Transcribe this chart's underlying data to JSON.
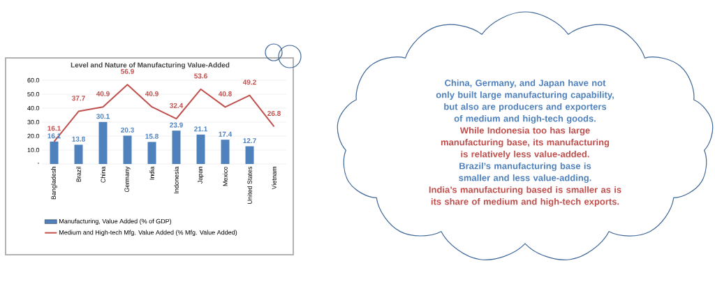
{
  "chart_data": {
    "type": "bar",
    "title": "Level and Nature of Manufacturing Value-Added",
    "categories": [
      "Bangladesh",
      "Brazil",
      "China",
      "Germany",
      "India",
      "Indonesia",
      "Japan",
      "Mexico",
      "United States",
      "Vietnam"
    ],
    "series": [
      {
        "name": "Manufacturing, Value Added (% of GDP)",
        "color": "#4f81bd",
        "values": [
          16.1,
          13.8,
          30.1,
          20.3,
          15.8,
          23.9,
          21.1,
          17.4,
          12.7,
          null
        ]
      },
      {
        "name": "Medium and High-tech Mfg. Value Added (% Mfg. Value Added)",
        "type": "line",
        "color": "#c0504d",
        "values": [
          16.1,
          37.7,
          40.9,
          56.9,
          40.9,
          32.4,
          53.6,
          40.8,
          49.2,
          26.8
        ]
      }
    ],
    "ylim": [
      0,
      60
    ],
    "yticks": [
      {
        "value": 0,
        "label": "-"
      },
      {
        "value": 10,
        "label": "10.0"
      },
      {
        "value": 20,
        "label": "20.0"
      },
      {
        "value": 30,
        "label": "30.0"
      },
      {
        "value": 40,
        "label": "40.0"
      },
      {
        "value": 50,
        "label": "50.0"
      },
      {
        "value": 60,
        "label": "60.0"
      }
    ],
    "grid": "y",
    "legend": "bottom",
    "data_labels": true,
    "annotations": [
      "China, Germany, and Japan have not only built large manufacturing capability, but also are producers and exporters of medium and high-tech goods.",
      "While Indonesia too has large manufacturing base, its manufacturing is relatively less value-added.",
      "Brazil’s manufacturing base is smaller and less value-adding.",
      "India’s manufacturing based is smaller as is its share of medium and high-tech exports."
    ]
  }
}
